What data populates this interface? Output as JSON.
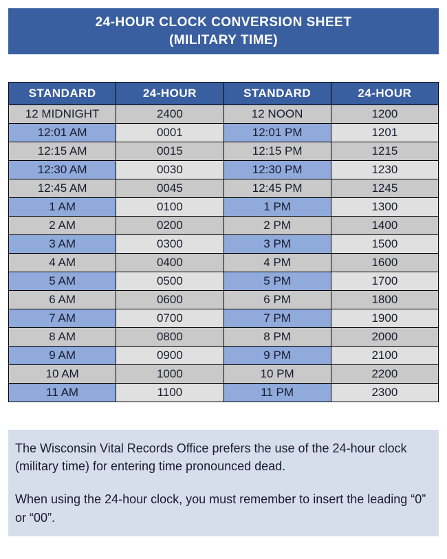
{
  "title_line1": "24-HOUR CLOCK CONVERSION SHEET",
  "title_line2": "(MILITARY TIME)",
  "colors": {
    "header_bg": "#3a5fa0",
    "header_fg": "#ffffff",
    "row_std_alt_a": "#c9c9c9",
    "row_std_alt_b": "#8faadb",
    "row_hr_alt_a": "#c9c9c9",
    "row_hr_alt_b": "#e0e0e0",
    "note_bg": "#d6deec",
    "border": "#000000",
    "text": "#1a1a2e"
  },
  "fonts": {
    "title_size_pt": 14,
    "header_size_pt": 13,
    "cell_size_pt": 13,
    "note_size_pt": 14
  },
  "table": {
    "type": "table",
    "columns": [
      "STANDARD",
      "24-HOUR",
      "STANDARD",
      "24-HOUR"
    ],
    "rows": [
      [
        "12 MIDNIGHT",
        "2400",
        "12 NOON",
        "1200"
      ],
      [
        "12:01 AM",
        "0001",
        "12:01 PM",
        "1201"
      ],
      [
        "12:15 AM",
        "0015",
        "12:15 PM",
        "1215"
      ],
      [
        "12:30 AM",
        "0030",
        "12:30 PM",
        "1230"
      ],
      [
        "12:45 AM",
        "0045",
        "12:45 PM",
        "1245"
      ],
      [
        "1 AM",
        "0100",
        "1 PM",
        "1300"
      ],
      [
        "2 AM",
        "0200",
        "2 PM",
        "1400"
      ],
      [
        "3 AM",
        "0300",
        "3 PM",
        "1500"
      ],
      [
        "4 AM",
        "0400",
        "4 PM",
        "1600"
      ],
      [
        "5 AM",
        "0500",
        "5 PM",
        "1700"
      ],
      [
        "6 AM",
        "0600",
        "6 PM",
        "1800"
      ],
      [
        "7 AM",
        "0700",
        "7 PM",
        "1900"
      ],
      [
        "8 AM",
        "0800",
        "8 PM",
        "2000"
      ],
      [
        "9 AM",
        "0900",
        "9 PM",
        "2100"
      ],
      [
        "10 AM",
        "1000",
        "10 PM",
        "2200"
      ],
      [
        "11 AM",
        "1100",
        "11 PM",
        "2300"
      ]
    ]
  },
  "note": {
    "p1": "The Wisconsin Vital Records Office prefers the use of the 24-hour clock (military time) for entering time pronounced dead.",
    "p2": "When using the 24-hour clock, you must remember to insert the leading “0” or “00”."
  }
}
